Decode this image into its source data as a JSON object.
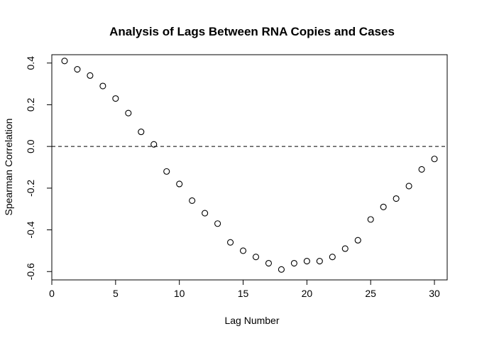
{
  "chart_data": {
    "type": "scatter",
    "title": "Analysis of Lags Between RNA Copies and Cases",
    "xlabel": "Lag Number",
    "ylabel": "Spearman Correlation",
    "xlim": [
      0,
      31
    ],
    "ylim": [
      -0.64,
      0.44
    ],
    "xticks": [
      0,
      5,
      10,
      15,
      20,
      25,
      30
    ],
    "yticks": [
      -0.6,
      -0.4,
      -0.2,
      0.0,
      0.2,
      0.4
    ],
    "xtick_labels": [
      "0",
      "5",
      "10",
      "15",
      "20",
      "25",
      "30"
    ],
    "ytick_labels": [
      "-0.6",
      "-0.4",
      "-0.2",
      "0.0",
      "0.2",
      "0.4"
    ],
    "reference_line": {
      "y": 0.0,
      "style": "dashed"
    },
    "grid": false,
    "legend": "none",
    "marker": "open-circle",
    "x": [
      1,
      2,
      3,
      4,
      5,
      6,
      7,
      8,
      9,
      10,
      11,
      12,
      13,
      14,
      15,
      16,
      17,
      18,
      19,
      20,
      21,
      22,
      23,
      24,
      25,
      26,
      27,
      28,
      29,
      30
    ],
    "y": [
      0.41,
      0.37,
      0.34,
      0.29,
      0.23,
      0.16,
      0.07,
      0.01,
      -0.12,
      -0.18,
      -0.26,
      -0.32,
      -0.37,
      -0.46,
      -0.5,
      -0.53,
      -0.56,
      -0.59,
      -0.56,
      -0.55,
      -0.55,
      -0.53,
      -0.49,
      -0.45,
      -0.35,
      -0.29,
      -0.25,
      -0.19,
      -0.11,
      -0.06
    ]
  }
}
